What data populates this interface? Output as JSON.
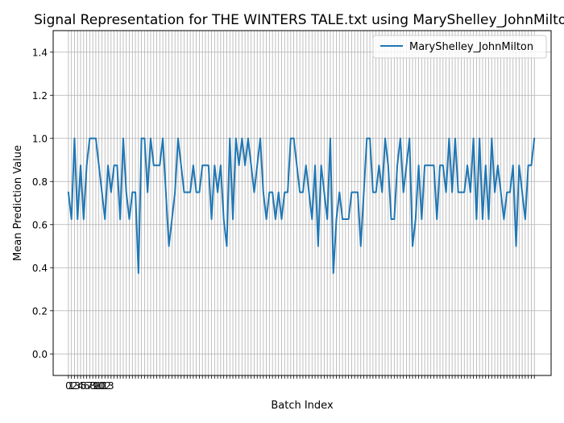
{
  "chart_data": {
    "type": "line",
    "title": "Signal Representation for THE WINTERS TALE.txt using MaryShelley_JohnMilton",
    "xlabel": "Batch Index",
    "ylabel": "Mean Prediction Value",
    "ylim": [
      -0.1,
      1.5
    ],
    "xlim": [
      -5,
      158.5
    ],
    "yticks": [
      "0.0",
      "0.2",
      "0.4",
      "0.6",
      "0.8",
      "1.0",
      "1.2",
      "1.4"
    ],
    "ytick_values": [
      0.0,
      0.2,
      0.4,
      0.6,
      0.8,
      1.0,
      1.2,
      1.4
    ],
    "grid": true,
    "legend_position": "upper right",
    "series": [
      {
        "name": "MaryShelley_JohnMilton",
        "color": "#1f77b4",
        "values": [
          0.75,
          0.625,
          1.0,
          0.625,
          0.875,
          0.625,
          0.875,
          1.0,
          1.0,
          1.0,
          0.875,
          0.75,
          0.625,
          0.875,
          0.75,
          0.875,
          0.875,
          0.625,
          1.0,
          0.75,
          0.625,
          0.75,
          0.75,
          0.375,
          1.0,
          1.0,
          0.75,
          1.0,
          0.875,
          0.875,
          0.875,
          1.0,
          0.75,
          0.5,
          0.625,
          0.75,
          1.0,
          0.875,
          0.75,
          0.75,
          0.75,
          0.875,
          0.75,
          0.75,
          0.875,
          0.875,
          0.875,
          0.625,
          0.875,
          0.75,
          0.875,
          0.625,
          0.5,
          1.0,
          0.625,
          1.0,
          0.875,
          1.0,
          0.875,
          1.0,
          0.875,
          0.75,
          0.875,
          1.0,
          0.75,
          0.625,
          0.75,
          0.75,
          0.625,
          0.75,
          0.625,
          0.75,
          0.75,
          1.0,
          1.0,
          0.875,
          0.75,
          0.75,
          0.875,
          0.75,
          0.625,
          0.875,
          0.5,
          0.875,
          0.75,
          0.625,
          1.0,
          0.375,
          0.625,
          0.75,
          0.625,
          0.625,
          0.625,
          0.75,
          0.75,
          0.75,
          0.5,
          0.75,
          1.0,
          1.0,
          0.75,
          0.75,
          0.875,
          0.75,
          1.0,
          0.875,
          0.625,
          0.625,
          0.875,
          1.0,
          0.75,
          0.875,
          1.0,
          0.5,
          0.625,
          0.875,
          0.625,
          0.875,
          0.875,
          0.875,
          0.875,
          0.625,
          0.875,
          0.875,
          0.75,
          1.0,
          0.75,
          1.0,
          0.75,
          0.75,
          0.75,
          0.875,
          0.75,
          1.0,
          0.625,
          1.0,
          0.625,
          0.875,
          0.625,
          1.0,
          0.75,
          0.875,
          0.75,
          0.625,
          0.75,
          0.75,
          0.875,
          0.5,
          0.875,
          0.75,
          0.625,
          0.875,
          0.875,
          1.0
        ]
      }
    ],
    "x_tick_labels_legible": [
      "0",
      "1",
      "2",
      "3",
      "4",
      "5",
      "6",
      "7",
      "8",
      "9",
      "10",
      "11",
      "12",
      "13"
    ]
  }
}
